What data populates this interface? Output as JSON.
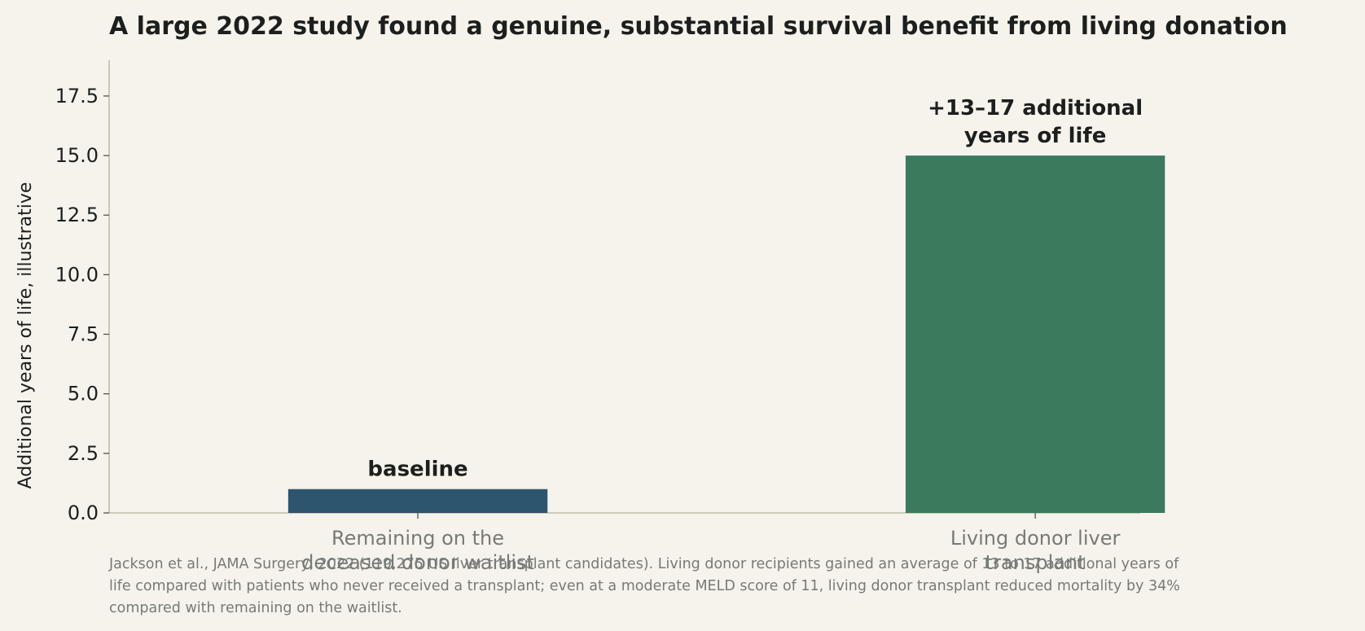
{
  "chart_data": {
    "type": "bar",
    "title": "A large 2022 study found a genuine, substantial survival benefit from living donation",
    "xlabel": "",
    "ylabel": "Additional years of life, illustrative",
    "categories": [
      [
        "Remaining on the",
        "deceased donor waitlist"
      ],
      [
        "Living donor liver",
        "transplant"
      ]
    ],
    "values": [
      1,
      15
    ],
    "bar_labels": [
      [
        "baseline"
      ],
      [
        "+13–17 additional",
        "years of life"
      ]
    ],
    "colors": [
      "#2d556e",
      "#3c7a5e"
    ],
    "ylim": [
      0,
      19
    ],
    "yticks": [
      0,
      2.5,
      5,
      7.5,
      10,
      12.5,
      15,
      17.5
    ],
    "ytick_labels": [
      "0.0",
      "2.5",
      "5.0",
      "7.5",
      "10.0",
      "12.5",
      "15.0",
      "17.5"
    ],
    "grid": false,
    "legend": "none",
    "caption": [
      "Jackson et al., JAMA Surgery, 2022 (119,275 US liver transplant candidates). Living donor recipients gained an average of 13 to 17 additional years of",
      "life compared with patients who never received a transplant; even at a moderate MELD score of 11, living donor transplant reduced mortality by 34%",
      "compared with remaining on the waitlist."
    ]
  },
  "colors": {
    "background": "#f6f3ec",
    "axis": "#c2bca8",
    "text": "#1c1f1d",
    "muted": "#777a76"
  }
}
